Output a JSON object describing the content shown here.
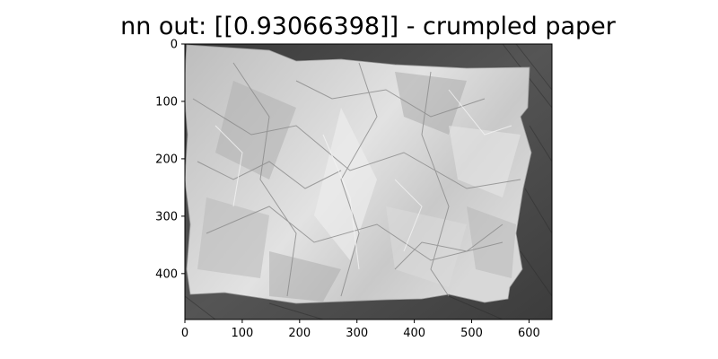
{
  "figure": {
    "title": "nn out: [[0.93066398]] - crumpled paper",
    "image_kind": "grayscale photograph of crumpled white paper on a dark wooden surface",
    "image_extent": {
      "x": [
        0,
        640
      ],
      "y": [
        0,
        480
      ]
    },
    "x_ticks": [
      0,
      100,
      200,
      300,
      400,
      500,
      600
    ],
    "y_ticks": [
      0,
      100,
      200,
      300,
      400
    ],
    "y_axis": "inverted",
    "grid": false,
    "colors": {
      "paper": "#c8c8c8",
      "paper_shadow": "#8e8e8e",
      "paper_highlight": "#ececec",
      "wood": "#4a4a4a",
      "wood_dark": "#2f2f2f"
    }
  }
}
